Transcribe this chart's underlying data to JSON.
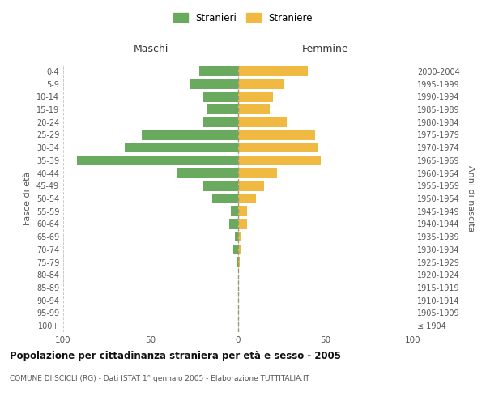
{
  "age_groups": [
    "100+",
    "95-99",
    "90-94",
    "85-89",
    "80-84",
    "75-79",
    "70-74",
    "65-69",
    "60-64",
    "55-59",
    "50-54",
    "45-49",
    "40-44",
    "35-39",
    "30-34",
    "25-29",
    "20-24",
    "15-19",
    "10-14",
    "5-9",
    "0-4"
  ],
  "birth_years": [
    "≤ 1904",
    "1905-1909",
    "1910-1914",
    "1915-1919",
    "1920-1924",
    "1925-1929",
    "1930-1934",
    "1935-1939",
    "1940-1944",
    "1945-1949",
    "1950-1954",
    "1955-1959",
    "1960-1964",
    "1965-1969",
    "1970-1974",
    "1975-1979",
    "1980-1984",
    "1985-1989",
    "1990-1994",
    "1995-1999",
    "2000-2004"
  ],
  "males": [
    0,
    0,
    0,
    0,
    0,
    1,
    3,
    2,
    5,
    4,
    15,
    20,
    35,
    92,
    65,
    55,
    20,
    18,
    20,
    28,
    22
  ],
  "females": [
    0,
    0,
    0,
    0,
    0,
    1,
    2,
    2,
    5,
    5,
    10,
    15,
    22,
    47,
    46,
    44,
    28,
    18,
    20,
    26,
    40
  ],
  "male_color": "#6aaa5e",
  "female_color": "#f0b942",
  "bar_height": 0.8,
  "xlim": 100,
  "title": "Popolazione per cittadinanza straniera per età e sesso - 2005",
  "subtitle": "COMUNE DI SCICLI (RG) - Dati ISTAT 1° gennaio 2005 - Elaborazione TUTTITALIA.IT",
  "ylabel_left": "Fasce di età",
  "ylabel_right": "Anni di nascita",
  "xlabel_left": "Maschi",
  "xlabel_right": "Femmine",
  "legend_male": "Stranieri",
  "legend_female": "Straniere",
  "background_color": "#ffffff",
  "grid_color": "#cccccc",
  "text_color": "#555555"
}
